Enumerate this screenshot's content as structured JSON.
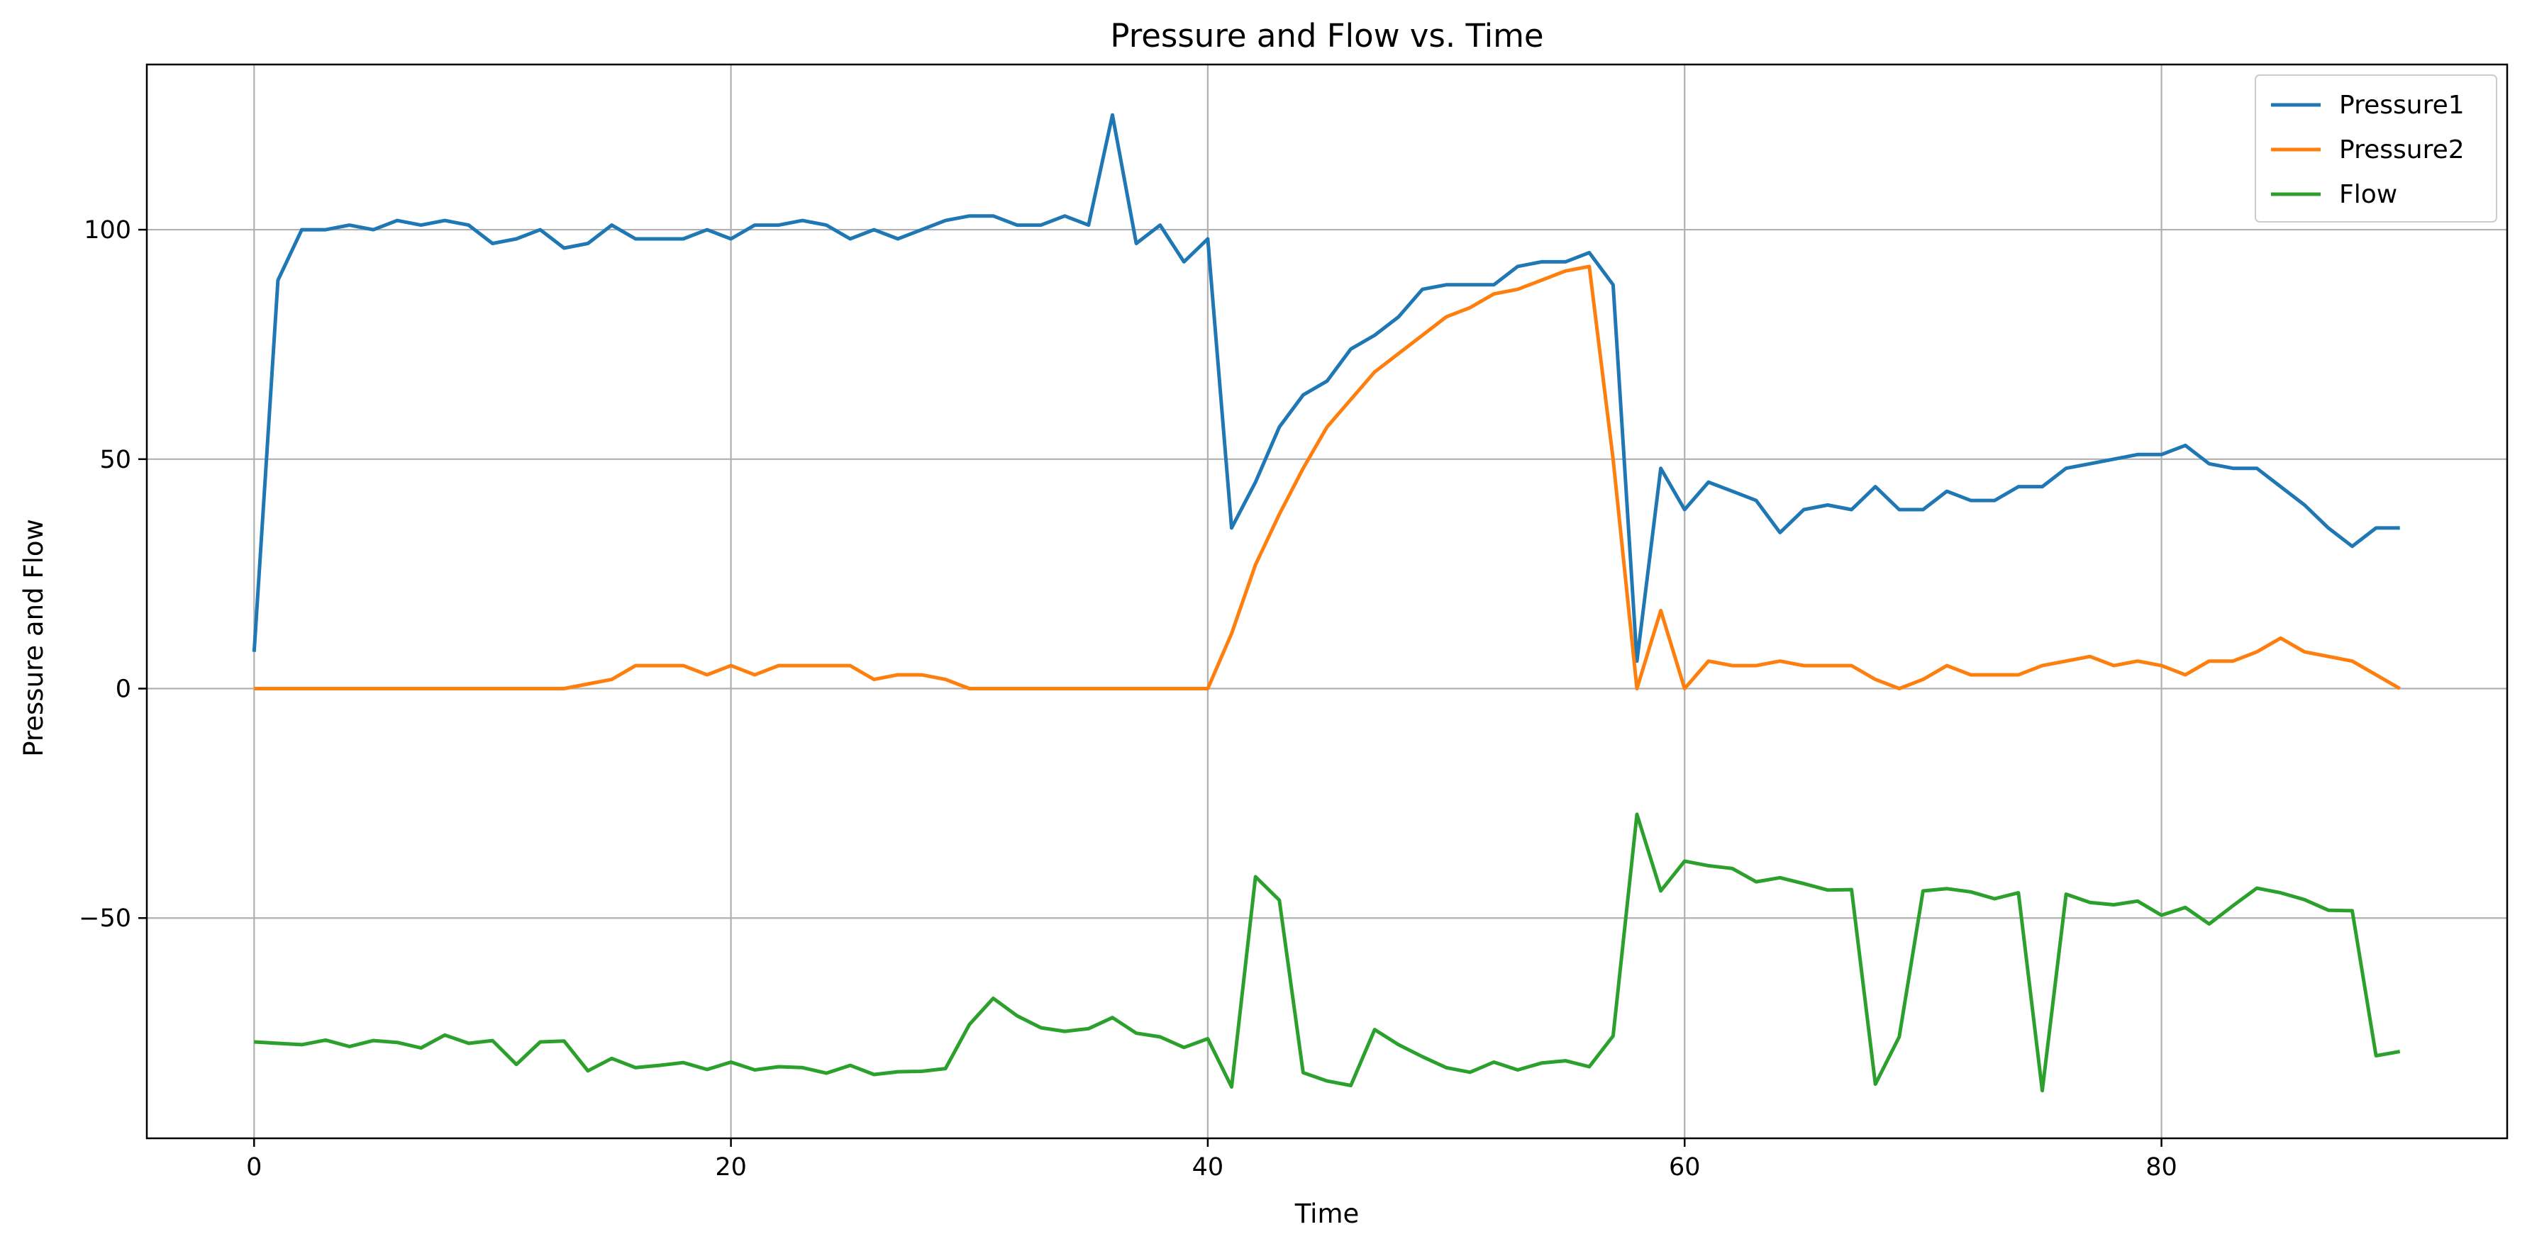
{
  "chart_data": {
    "type": "line",
    "title": "Pressure and Flow vs. Time",
    "xlabel": "Time",
    "ylabel": "Pressure and Flow",
    "xlim": [
      -4.5,
      94.5
    ],
    "ylim": [
      -98,
      136
    ],
    "xticks": [
      0,
      20,
      40,
      60,
      80
    ],
    "yticks": [
      -50,
      0,
      50,
      100
    ],
    "grid": true,
    "legend_position": "top-right",
    "x": [
      0,
      1,
      2,
      3,
      4,
      5,
      6,
      7,
      8,
      9,
      10,
      11,
      12,
      13,
      14,
      15,
      16,
      17,
      18,
      19,
      20,
      21,
      22,
      23,
      24,
      25,
      26,
      27,
      28,
      29,
      30,
      31,
      32,
      33,
      34,
      35,
      36,
      37,
      38,
      39,
      40,
      41,
      42,
      43,
      44,
      45,
      46,
      47,
      48,
      49,
      50,
      51,
      52,
      53,
      54,
      55,
      56,
      57,
      58,
      59,
      60,
      61,
      62,
      63,
      64,
      65,
      66,
      67,
      68,
      69,
      70,
      71,
      72,
      73,
      74,
      75,
      76,
      77,
      78,
      79,
      80,
      81,
      82,
      83,
      84,
      85,
      86,
      87,
      88,
      89,
      90
    ],
    "series": [
      {
        "name": "Pressure1",
        "color": "#1f77b4",
        "values": [
          8,
          89,
          100,
          100,
          101,
          100,
          102,
          101,
          102,
          101,
          97,
          98,
          100,
          96,
          97,
          101,
          98,
          98,
          98,
          100,
          98,
          101,
          101,
          102,
          101,
          98,
          100,
          98,
          100,
          102,
          103,
          103,
          101,
          101,
          103,
          101,
          125,
          97,
          101,
          93,
          98,
          35,
          45,
          57,
          64,
          67,
          74,
          77,
          81,
          87,
          88,
          88,
          88,
          92,
          93,
          93,
          95,
          88,
          6,
          48,
          39,
          45,
          43,
          41,
          34,
          39,
          40,
          39,
          44,
          39,
          39,
          43,
          41,
          41,
          44,
          44,
          48,
          49,
          50,
          51,
          51,
          53,
          49,
          48,
          48,
          44,
          40,
          35,
          31,
          35,
          35
        ]
      },
      {
        "name": "Pressure2",
        "color": "#ff7f0e",
        "values": [
          0,
          0,
          0,
          0,
          0,
          0,
          0,
          0,
          0,
          0,
          0,
          0,
          0,
          0,
          1,
          2,
          5,
          5,
          5,
          3,
          5,
          3,
          5,
          5,
          5,
          5,
          2,
          3,
          3,
          2,
          0,
          0,
          0,
          0,
          0,
          0,
          0,
          0,
          0,
          0,
          0,
          12,
          27,
          38,
          48,
          57,
          63,
          69,
          73,
          77,
          81,
          83,
          86,
          87,
          89,
          91,
          92,
          50,
          0,
          17,
          0,
          6,
          5,
          5,
          6,
          5,
          5,
          5,
          2,
          0,
          2,
          5,
          3,
          3,
          3,
          5,
          6,
          7,
          5,
          6,
          5,
          3,
          6,
          6,
          8,
          11,
          8,
          7,
          6,
          3,
          0
        ]
      },
      {
        "name": "Flow",
        "color": "#2ca02c",
        "values": [
          -77,
          -77.3,
          -77.6,
          -76.6,
          -78,
          -76.7,
          -77.1,
          -78.3,
          -75.5,
          -77.3,
          -76.7,
          -81.9,
          -77,
          -76.8,
          -83.3,
          -80.6,
          -82.6,
          -82.1,
          -81.5,
          -83,
          -81.4,
          -83.1,
          -82.4,
          -82.6,
          -83.8,
          -82.1,
          -84.1,
          -83.5,
          -83.4,
          -82.8,
          -73.2,
          -67.5,
          -71.3,
          -73.9,
          -74.7,
          -74.1,
          -71.7,
          -75.1,
          -75.9,
          -78.2,
          -76.3,
          -86.8,
          -41,
          -46.1,
          -83.7,
          -85.5,
          -86.5,
          -74.3,
          -77.6,
          -80.2,
          -82.6,
          -83.6,
          -81.4,
          -83.1,
          -81.6,
          -81.1,
          -82.4,
          -75.7,
          -27.4,
          -44.1,
          -37.6,
          -38.6,
          -39.2,
          -42.1,
          -41.2,
          -42.5,
          -43.9,
          -43.8,
          -86.2,
          -75.9,
          -44.1,
          -43.6,
          -44.3,
          -45.8,
          -44.5,
          -87.6,
          -44.8,
          -46.6,
          -47.1,
          -46.3,
          -49.4,
          -47.7,
          -51.3,
          -47.3,
          -43.5,
          -44.5,
          -46,
          -48.3,
          -48.4,
          -80,
          -79.1
        ]
      }
    ]
  }
}
